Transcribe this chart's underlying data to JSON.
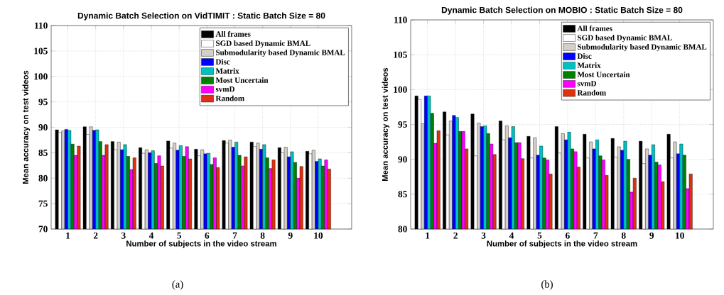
{
  "chart_data": [
    {
      "type": "bar",
      "title": "Dynamic Batch Selection on VidTIMIT : Static Batch Size = 80",
      "xlabel": "Number of subjects in the video stream",
      "ylabel": "Mean accuracy on test videos",
      "categories": [
        "1",
        "2",
        "3",
        "4",
        "5",
        "6",
        "7",
        "8",
        "9",
        "10"
      ],
      "series": [
        {
          "name": "All frames",
          "color": "#000000",
          "values": [
            89.5,
            90.1,
            87.2,
            86.0,
            87.3,
            85.7,
            87.4,
            87.1,
            86.0,
            85.3
          ]
        },
        {
          "name": "SGD based Dynamic BMAL",
          "color": "#ffffff",
          "values": [
            89.0,
            88.6,
            85.6,
            84.9,
            85.9,
            84.4,
            86.9,
            86.2,
            85.0,
            84.8
          ]
        },
        {
          "name": "Submodularity based Dynamic BMAL",
          "color": "#d4d0c8",
          "values": [
            89.3,
            90.1,
            87.1,
            85.6,
            86.9,
            85.6,
            87.5,
            86.9,
            86.1,
            85.5
          ]
        },
        {
          "name": "Disc",
          "color": "#0000ff",
          "values": [
            89.6,
            89.4,
            85.6,
            85.0,
            85.5,
            84.8,
            86.1,
            85.7,
            84.2,
            83.3
          ]
        },
        {
          "name": "Matrix",
          "color": "#00c0c0",
          "values": [
            89.4,
            89.5,
            86.6,
            85.4,
            86.4,
            84.9,
            87.1,
            86.6,
            85.2,
            83.8
          ]
        },
        {
          "name": "Most Uncertain",
          "color": "#008000",
          "values": [
            86.7,
            87.2,
            84.3,
            82.9,
            84.3,
            82.7,
            84.5,
            84.0,
            83.1,
            82.4
          ]
        },
        {
          "name": "svmD",
          "color": "#ff00ff",
          "values": [
            84.5,
            84.5,
            81.7,
            84.4,
            86.2,
            84.0,
            82.4,
            81.9,
            80.0,
            83.6
          ]
        },
        {
          "name": "Random",
          "color": "#e03010",
          "values": [
            86.3,
            86.6,
            84.0,
            82.4,
            83.8,
            82.1,
            84.2,
            83.6,
            82.3,
            81.8
          ]
        }
      ],
      "ylim": [
        70,
        110
      ],
      "yticks": [
        70,
        75,
        80,
        85,
        90,
        95,
        100,
        105,
        110
      ],
      "grid": true,
      "legend": "top right",
      "annotations": [
        "(a)"
      ]
    },
    {
      "type": "bar",
      "title": "Dynamic Batch Selection on MOBIO : Static Batch Size = 80",
      "xlabel": "Number of subjects in the video stream",
      "ylabel": "Mean accuracy on test videos",
      "categories": [
        "1",
        "2",
        "3",
        "4",
        "5",
        "6",
        "7",
        "8",
        "9",
        "10"
      ],
      "series": [
        {
          "name": "All frames",
          "color": "#000000",
          "values": [
            99.1,
            96.8,
            96.5,
            95.5,
            93.3,
            94.7,
            93.6,
            93.0,
            92.6,
            93.6
          ]
        },
        {
          "name": "SGD based Dynamic BMAL",
          "color": "#ffffff",
          "values": [
            98.6,
            93.5,
            90.5,
            92.8,
            90.2,
            90.9,
            90.2,
            90.3,
            89.4,
            90.2
          ]
        },
        {
          "name": "Submodularity based Dynamic BMAL",
          "color": "#d4d0c8",
          "values": [
            95.1,
            95.5,
            95.2,
            94.8,
            93.1,
            93.7,
            92.5,
            91.8,
            91.5,
            92.5
          ]
        },
        {
          "name": "Disc",
          "color": "#0000ff",
          "values": [
            99.1,
            96.3,
            94.7,
            93.1,
            90.6,
            92.8,
            91.5,
            91.3,
            90.6,
            90.8
          ]
        },
        {
          "name": "Matrix",
          "color": "#00c0c0",
          "values": [
            99.1,
            96.0,
            94.8,
            94.7,
            91.9,
            93.9,
            92.8,
            92.6,
            92.1,
            92.2
          ]
        },
        {
          "name": "Most Uncertain",
          "color": "#008000",
          "values": [
            96.6,
            94.0,
            93.7,
            92.4,
            90.2,
            91.5,
            90.5,
            90.0,
            89.6,
            90.6
          ]
        },
        {
          "name": "svmD",
          "color": "#ff00ff",
          "values": [
            92.3,
            94.0,
            92.2,
            92.4,
            89.9,
            91.1,
            89.9,
            85.3,
            89.2,
            85.8
          ]
        },
        {
          "name": "Random",
          "color": "#e03010",
          "values": [
            94.1,
            91.5,
            90.7,
            90.1,
            87.9,
            88.9,
            87.7,
            87.3,
            86.8,
            87.9
          ]
        }
      ],
      "ylim": [
        80,
        110
      ],
      "yticks": [
        80,
        85,
        90,
        95,
        100,
        105,
        110
      ],
      "grid": true,
      "legend": "top right",
      "annotations": [
        "(b)"
      ]
    }
  ]
}
